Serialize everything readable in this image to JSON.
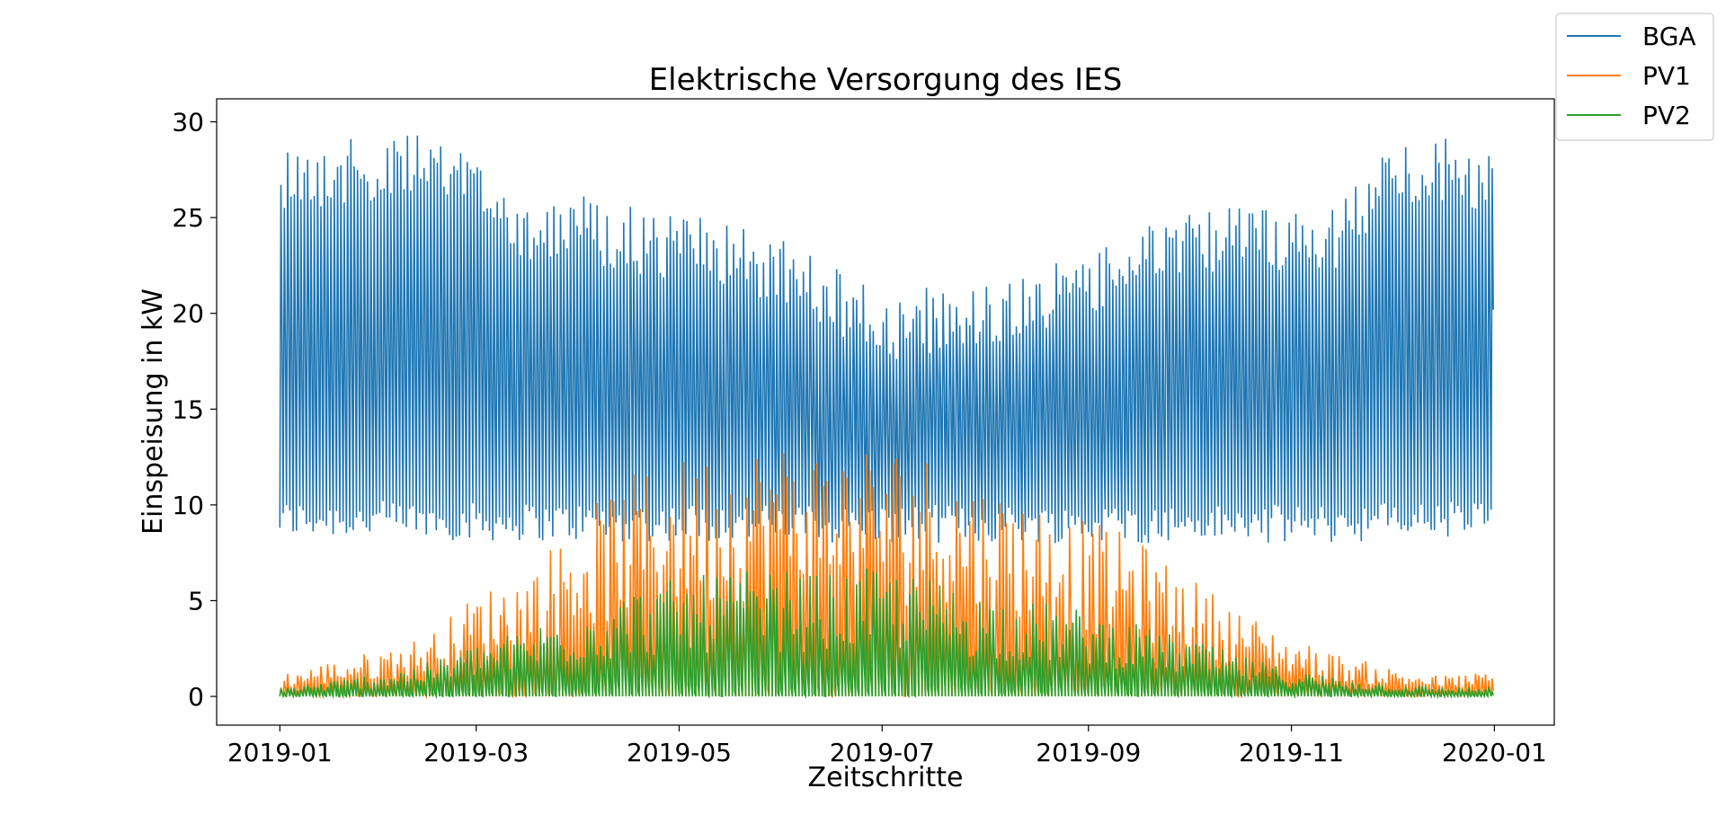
{
  "chart_data": {
    "type": "line",
    "title": "Elektrische Versorgung des IES",
    "xlabel": "Zeitschritte",
    "ylabel": "Einspeisung in kW",
    "xlim": [
      "2018-12-13",
      "2020-01-19"
    ],
    "ylim": [
      -1.5,
      31.2
    ],
    "x_ticks": [
      "2019-01",
      "2019-03",
      "2019-05",
      "2019-07",
      "2019-09",
      "2019-11",
      "2020-01"
    ],
    "y_ticks": [
      0,
      5,
      10,
      15,
      20,
      25,
      30
    ],
    "legend_position": "top-right outside",
    "grid": false,
    "data_resolution": "daily envelope (approx. max and min per day, 2019-01-01 to 2019-12-31)",
    "series": [
      {
        "name": "BGA",
        "color": "#1f77b4",
        "envelope_points": {
          "dates": [
            "2019-01-01",
            "2019-01-15",
            "2019-02-01",
            "2019-02-15",
            "2019-03-01",
            "2019-03-15",
            "2019-04-01",
            "2019-04-15",
            "2019-05-01",
            "2019-05-15",
            "2019-06-01",
            "2019-06-15",
            "2019-07-01",
            "2019-07-15",
            "2019-08-01",
            "2019-08-15",
            "2019-09-01",
            "2019-09-15",
            "2019-10-01",
            "2019-10-15",
            "2019-11-01",
            "2019-11-15",
            "2019-12-01",
            "2019-12-15",
            "2019-12-31"
          ],
          "max": [
            29.0,
            29.0,
            29.3,
            29.3,
            28.5,
            26.3,
            26.3,
            25.6,
            25.2,
            24.8,
            23.8,
            22.6,
            21.0,
            21.4,
            21.7,
            22.2,
            23.3,
            24.3,
            25.3,
            25.6,
            25.7,
            25.8,
            29.0,
            29.2,
            28.6
          ],
          "min": [
            8.2,
            8.3,
            8.2,
            8.2,
            8.1,
            8.1,
            8.1,
            8.0,
            8.1,
            8.1,
            8.0,
            8.0,
            8.0,
            8.0,
            8.0,
            8.0,
            8.0,
            8.0,
            8.0,
            8.0,
            8.0,
            8.0,
            8.2,
            8.2,
            8.3
          ]
        }
      },
      {
        "name": "PV1",
        "color": "#ff7f0e",
        "envelope_points": {
          "dates": [
            "2019-01-01",
            "2019-01-15",
            "2019-02-01",
            "2019-02-15",
            "2019-03-01",
            "2019-03-15",
            "2019-04-01",
            "2019-04-15",
            "2019-05-01",
            "2019-05-15",
            "2019-06-01",
            "2019-06-15",
            "2019-07-01",
            "2019-07-15",
            "2019-08-01",
            "2019-08-15",
            "2019-09-01",
            "2019-09-15",
            "2019-10-01",
            "2019-10-15",
            "2019-11-01",
            "2019-11-15",
            "2019-12-01",
            "2019-12-15",
            "2019-12-31"
          ],
          "max": [
            1.2,
            1.8,
            2.5,
            3.3,
            5.5,
            6.5,
            9.5,
            11.5,
            12.5,
            13.2,
            13.5,
            13.3,
            13.5,
            12.8,
            11.2,
            10.5,
            9.2,
            8.3,
            6.3,
            4.7,
            3.0,
            2.2,
            1.5,
            1.1,
            1.3
          ],
          "min": [
            0,
            0,
            0,
            0,
            0,
            0,
            0,
            0,
            0,
            0,
            0,
            0,
            0,
            0,
            0,
            0,
            0,
            0,
            0,
            0,
            0,
            0,
            0,
            0,
            0
          ]
        }
      },
      {
        "name": "PV2",
        "color": "#2ca02c",
        "envelope_points": {
          "dates": [
            "2019-01-01",
            "2019-01-15",
            "2019-02-01",
            "2019-02-15",
            "2019-03-01",
            "2019-03-15",
            "2019-04-01",
            "2019-04-15",
            "2019-05-01",
            "2019-05-15",
            "2019-06-01",
            "2019-06-15",
            "2019-07-01",
            "2019-07-15",
            "2019-08-01",
            "2019-08-15",
            "2019-09-01",
            "2019-09-15",
            "2019-10-01",
            "2019-10-15",
            "2019-11-01",
            "2019-11-15",
            "2019-12-01",
            "2019-12-15",
            "2019-12-31"
          ],
          "max": [
            0.5,
            0.8,
            1.3,
            1.8,
            2.8,
            3.5,
            4.8,
            5.6,
            6.2,
            6.5,
            6.6,
            6.4,
            6.8,
            6.2,
            5.4,
            5.0,
            4.5,
            3.8,
            3.0,
            2.2,
            1.4,
            1.0,
            0.7,
            0.5,
            0.5
          ],
          "min": [
            0,
            0,
            0,
            0,
            0,
            0,
            0,
            0,
            0,
            0,
            0,
            0,
            0,
            0,
            0,
            0,
            0,
            0,
            0,
            0,
            0,
            0,
            0,
            0,
            0
          ]
        }
      }
    ]
  }
}
